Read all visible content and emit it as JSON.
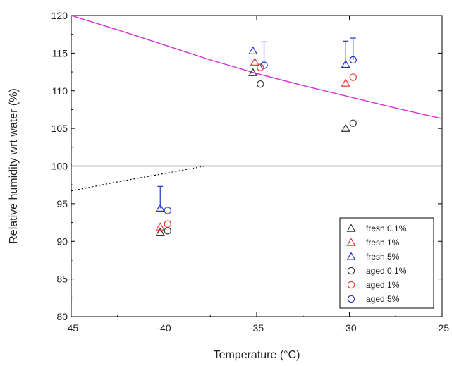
{
  "chart_data": {
    "type": "scatter",
    "xlabel": "Temperature (°C)",
    "ylabel": "Relative humidity wrt water (%)",
    "xlim": [
      -45,
      -25
    ],
    "ylim": [
      80,
      120
    ],
    "xticks": [
      -45,
      -40,
      -35,
      -30,
      -25
    ],
    "yticks": [
      80,
      85,
      90,
      95,
      100,
      105,
      110,
      115,
      120
    ],
    "xtick_labels": [
      "-45",
      "-40",
      "-35",
      "-30",
      "-25"
    ],
    "ytick_labels": [
      "80",
      "85",
      "90",
      "95",
      "100",
      "105",
      "110",
      "115",
      "120"
    ],
    "grid": false,
    "legend_position": "bottom-right",
    "reference_line": {
      "y": 100,
      "color": "#000000"
    },
    "curves": [
      {
        "style": "solid",
        "color": "#d62fd0",
        "x": [
          -45,
          -42.5,
          -40,
          -37.5,
          -35,
          -32.5,
          -30,
          -27.5,
          -25
        ],
        "y": [
          120.0,
          118.1,
          116.1,
          114.1,
          112.3,
          110.7,
          109.2,
          107.7,
          106.3
        ]
      },
      {
        "style": "dotted",
        "color": "#000000",
        "x": [
          -45,
          -42.5,
          -40,
          -37.8
        ],
        "y": [
          96.7,
          97.9,
          99.0,
          100.0
        ]
      }
    ],
    "series": [
      {
        "name": "fresh 0,1%",
        "marker": "triangle",
        "color": "#333333",
        "points": [
          {
            "x": -40.2,
            "y": 91.2
          },
          {
            "x": -35.2,
            "y": 112.4
          },
          {
            "x": -30.2,
            "y": 105.0
          }
        ]
      },
      {
        "name": "fresh 1%",
        "marker": "triangle",
        "color": "#e8342c",
        "points": [
          {
            "x": -40.2,
            "y": 91.9
          },
          {
            "x": -35.1,
            "y": 113.8
          },
          {
            "x": -30.2,
            "y": 111.0
          }
        ]
      },
      {
        "name": "fresh 5%",
        "marker": "triangle",
        "color": "#2234c8",
        "points": [
          {
            "x": -40.2,
            "y": 94.4,
            "err": 2.9
          },
          {
            "x": -35.2,
            "y": 115.3
          },
          {
            "x": -30.2,
            "y": 113.5,
            "err": 3.1
          }
        ]
      },
      {
        "name": "aged 0,1%",
        "marker": "circle",
        "color": "#333333",
        "points": [
          {
            "x": -39.8,
            "y": 91.4
          },
          {
            "x": -34.8,
            "y": 110.9
          },
          {
            "x": -29.8,
            "y": 105.7
          }
        ]
      },
      {
        "name": "aged 1%",
        "marker": "circle",
        "color": "#e8342c",
        "points": [
          {
            "x": -39.8,
            "y": 92.3
          },
          {
            "x": -34.8,
            "y": 113.1
          },
          {
            "x": -29.8,
            "y": 111.8
          }
        ]
      },
      {
        "name": "aged 5%",
        "marker": "circle",
        "color": "#2234c8",
        "points": [
          {
            "x": -39.8,
            "y": 94.1
          },
          {
            "x": -34.6,
            "y": 113.4,
            "err": 3.1
          },
          {
            "x": -29.8,
            "y": 114.1,
            "err": 2.9
          }
        ]
      }
    ]
  }
}
